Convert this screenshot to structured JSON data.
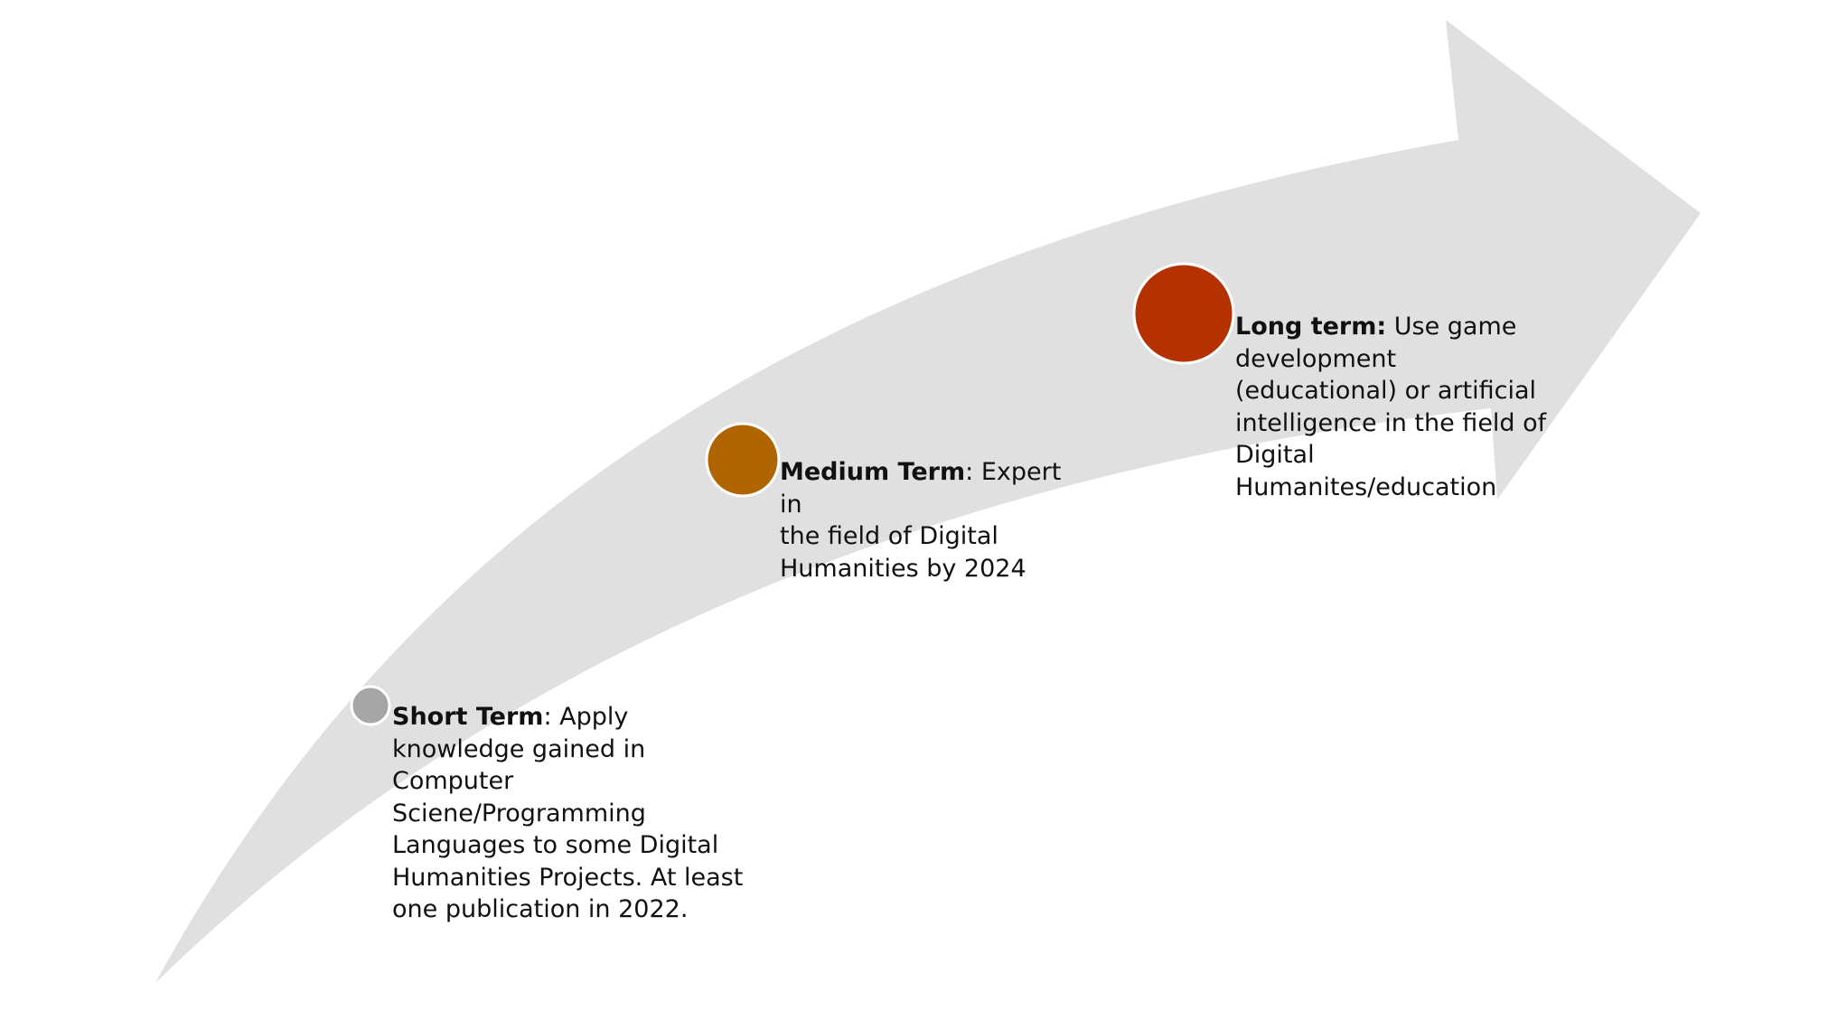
{
  "colors": {
    "arrow": "#e0e0e0",
    "marker_border": "#ffffff",
    "short_marker": "#a6a6a6",
    "medium_marker": "#b06500",
    "long_marker": "#b53200"
  },
  "milestones": [
    {
      "id": "short",
      "term": "Short Term",
      "separator": ": ",
      "description": "Apply\nknowledge gained in\nComputer\nSciene/Programming\nLanguages to some Digital\nHumanities Projects. At least\none publication in 2022."
    },
    {
      "id": "medium",
      "term": "Medium Term",
      "separator": ": ",
      "description": "Expert in\nthe field of Digital\nHumanities by 2024"
    },
    {
      "id": "long",
      "term": "Long term:",
      "separator": " ",
      "description": "Use game\ndevelopment\n(educational) or artificial\nintelligence in the field of\nDigital\nHumanites/education"
    }
  ]
}
